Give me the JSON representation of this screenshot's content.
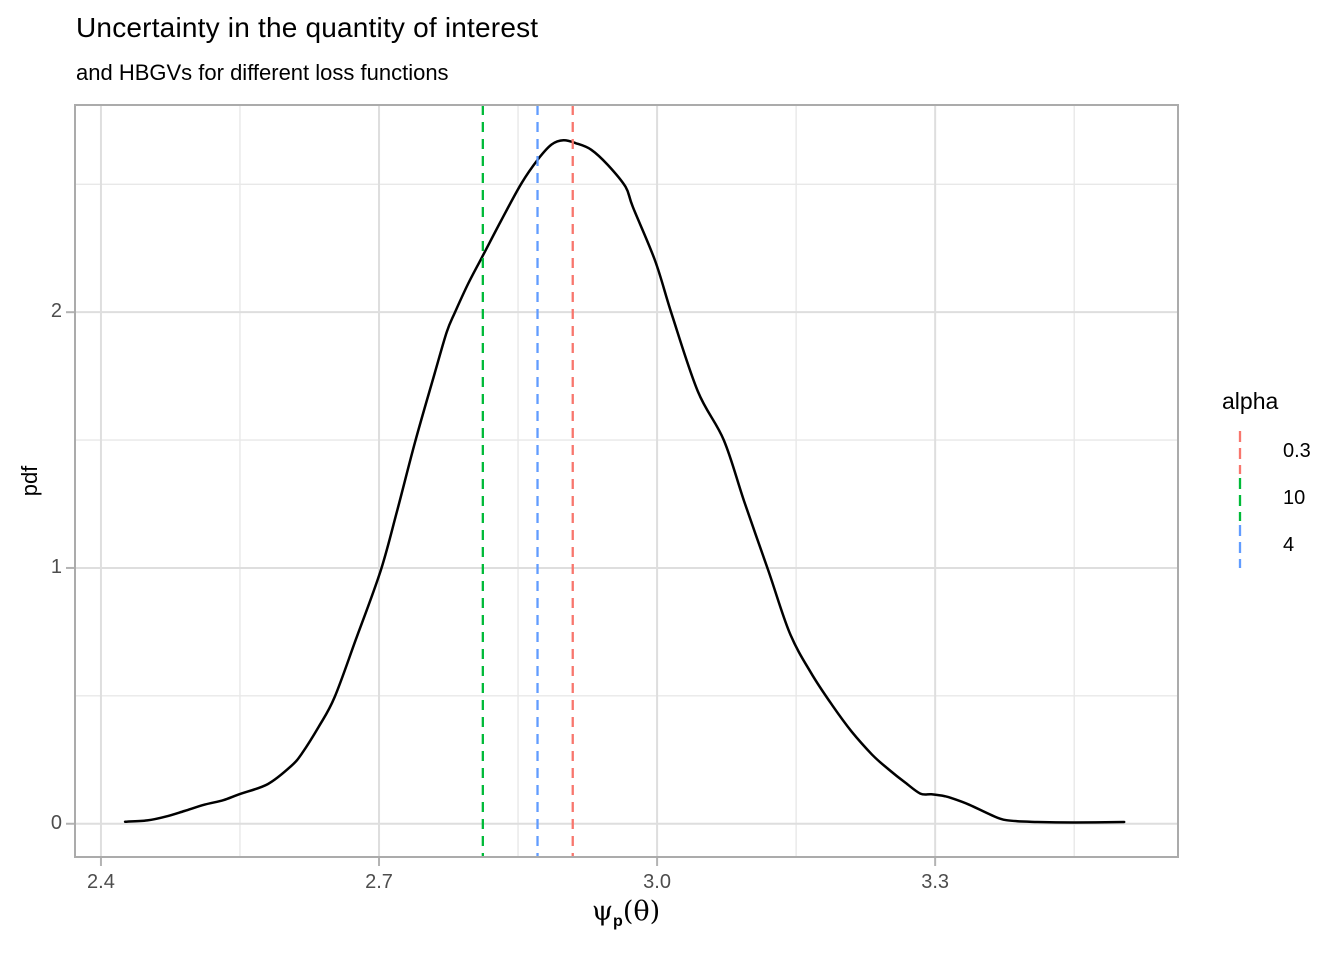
{
  "header": {
    "title": "Uncertainty in the quantity of interest",
    "subtitle": "and HBGVs for different loss functions"
  },
  "axes": {
    "y_title": "pdf",
    "x_title_psi": "ψ",
    "x_title_sub": "p",
    "x_title_paren": "(θ)"
  },
  "legend": {
    "title": "alpha",
    "position": "right",
    "items": [
      {
        "label": "0.3",
        "color": "#F8766D"
      },
      {
        "label": "10",
        "color": "#00BA38"
      },
      {
        "label": "4",
        "color": "#619CFF"
      }
    ]
  },
  "style": {
    "grid_major": "#DEDEDE",
    "grid_minor": "#E8E8E8",
    "panel_border": "#ABABAB",
    "tick_mark_color": "#B3B3B3",
    "tick_label_color": "#4D4D4D",
    "curve_color": "#000000",
    "background": "#FFFFFF"
  },
  "chart_data": {
    "type": "line",
    "title": "Uncertainty in the quantity of interest",
    "subtitle": "and HBGVs for different loss functions",
    "xlabel": "psi_p(theta)",
    "ylabel": "pdf",
    "xlim": [
      2.372,
      3.562
    ],
    "ylim": [
      -0.13,
      2.81
    ],
    "grid": true,
    "legend_position": "right",
    "x_ticks": [
      2.4,
      2.7,
      3.0,
      3.3
    ],
    "x_tick_labels": [
      "2.4",
      "2.7",
      "3.0",
      "3.3"
    ],
    "x_minor_ticks": [
      2.55,
      2.85,
      3.15,
      3.45
    ],
    "y_ticks": [
      0,
      1,
      2
    ],
    "y_tick_labels": [
      "0",
      "1",
      "2"
    ],
    "y_minor_ticks": [
      0.5,
      1.5,
      2.5
    ],
    "series": [
      {
        "name": "pdf density of psi_p(theta)",
        "color": "#000000",
        "points": [
          [
            2.426,
            0.008
          ],
          [
            2.45,
            0.013
          ],
          [
            2.47,
            0.028
          ],
          [
            2.49,
            0.05
          ],
          [
            2.512,
            0.075
          ],
          [
            2.532,
            0.092
          ],
          [
            2.549,
            0.115
          ],
          [
            2.58,
            0.155
          ],
          [
            2.605,
            0.225
          ],
          [
            2.617,
            0.276
          ],
          [
            2.635,
            0.38
          ],
          [
            2.652,
            0.494
          ],
          [
            2.675,
            0.72
          ],
          [
            2.702,
            0.992
          ],
          [
            2.72,
            1.23
          ],
          [
            2.739,
            1.494
          ],
          [
            2.76,
            1.76
          ],
          [
            2.773,
            1.922
          ],
          [
            2.782,
            2.0
          ],
          [
            2.796,
            2.11
          ],
          [
            2.811,
            2.214
          ],
          [
            2.832,
            2.36
          ],
          [
            2.854,
            2.506
          ],
          [
            2.872,
            2.6
          ],
          [
            2.886,
            2.655
          ],
          [
            2.899,
            2.672
          ],
          [
            2.913,
            2.66
          ],
          [
            2.929,
            2.635
          ],
          [
            2.947,
            2.575
          ],
          [
            2.966,
            2.49
          ],
          [
            2.974,
            2.41
          ],
          [
            2.998,
            2.2
          ],
          [
            3.016,
            1.99
          ],
          [
            3.044,
            1.69
          ],
          [
            3.072,
            1.5
          ],
          [
            3.094,
            1.26
          ],
          [
            3.12,
            0.99
          ],
          [
            3.143,
            0.747
          ],
          [
            3.166,
            0.59
          ],
          [
            3.189,
            0.463
          ],
          [
            3.21,
            0.36
          ],
          [
            3.232,
            0.27
          ],
          [
            3.248,
            0.218
          ],
          [
            3.268,
            0.16
          ],
          [
            3.284,
            0.118
          ],
          [
            3.296,
            0.115
          ],
          [
            3.31,
            0.108
          ],
          [
            3.318,
            0.1
          ],
          [
            3.337,
            0.074
          ],
          [
            3.36,
            0.035
          ],
          [
            3.377,
            0.014
          ],
          [
            3.41,
            0.007
          ],
          [
            3.45,
            0.005
          ],
          [
            3.504,
            0.007
          ]
        ]
      }
    ],
    "vlines": [
      {
        "alpha": "0.3",
        "x": 2.909,
        "color": "#F8766D",
        "linetype": "dashed"
      },
      {
        "alpha": "10",
        "x": 2.812,
        "color": "#00BA38",
        "linetype": "dashed"
      },
      {
        "alpha": "4",
        "x": 2.871,
        "color": "#619CFF",
        "linetype": "dashed"
      }
    ]
  }
}
